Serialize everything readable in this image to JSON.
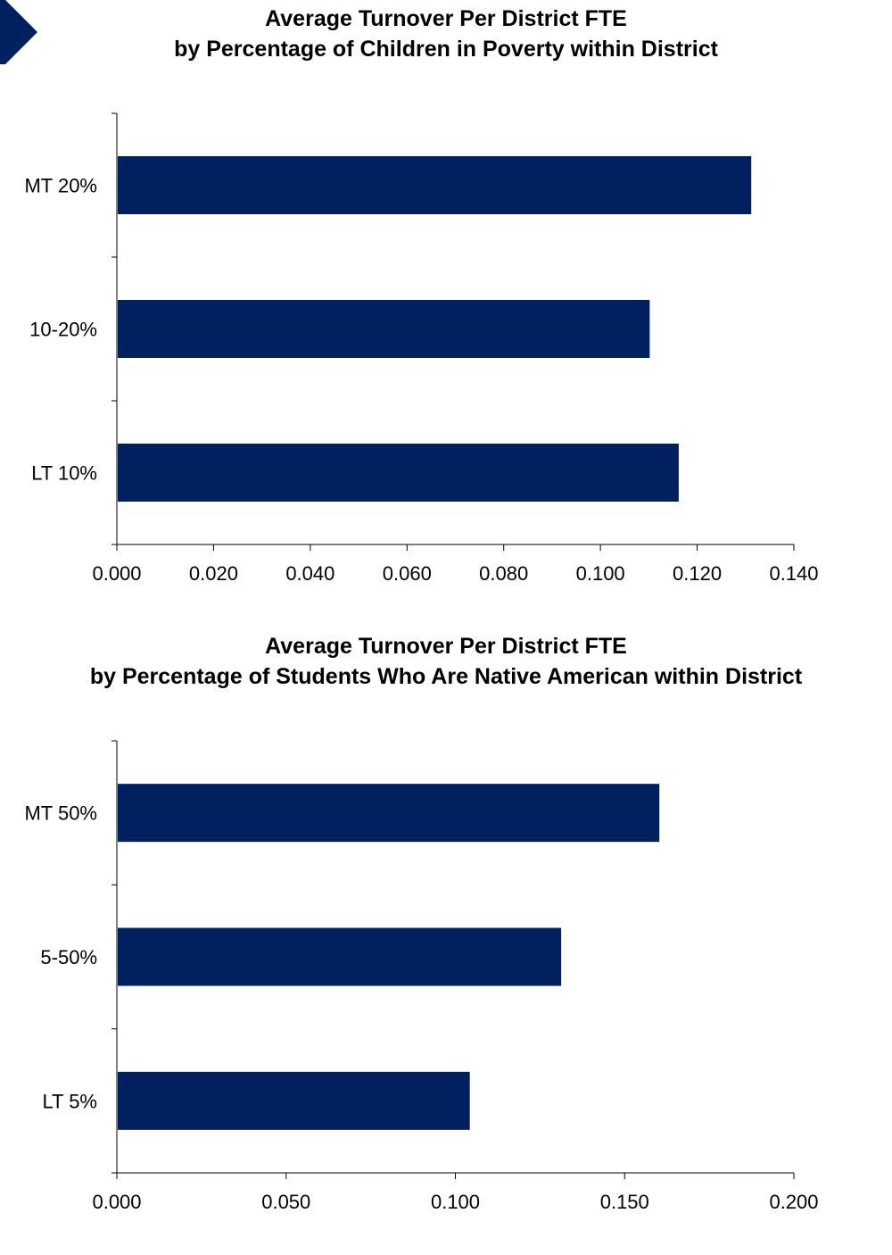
{
  "accent_color": "#002060",
  "corner_icon": "chevron-right-icon",
  "chart_data": [
    {
      "type": "bar",
      "orientation": "horizontal",
      "title": "Average Turnover Per District FTE",
      "subtitle": "by Percentage of Children in Poverty within District",
      "categories": [
        "MT 20%",
        "10-20%",
        "LT 10%"
      ],
      "values": [
        0.131,
        0.11,
        0.116
      ],
      "xlim": [
        0,
        0.14
      ],
      "xticks": [
        "0.000",
        "0.020",
        "0.040",
        "0.060",
        "0.080",
        "0.100",
        "0.120",
        "0.140"
      ],
      "grid": false,
      "legend": "none"
    },
    {
      "type": "bar",
      "orientation": "horizontal",
      "title": "Average Turnover Per District FTE",
      "subtitle": "by Percentage of Students Who Are Native American within District",
      "categories": [
        "MT 50%",
        "5-50%",
        "LT 5%"
      ],
      "values": [
        0.16,
        0.131,
        0.104
      ],
      "xlim": [
        0,
        0.2
      ],
      "xticks": [
        "0.000",
        "0.050",
        "0.100",
        "0.150",
        "0.200"
      ],
      "grid": false,
      "legend": "none"
    }
  ]
}
